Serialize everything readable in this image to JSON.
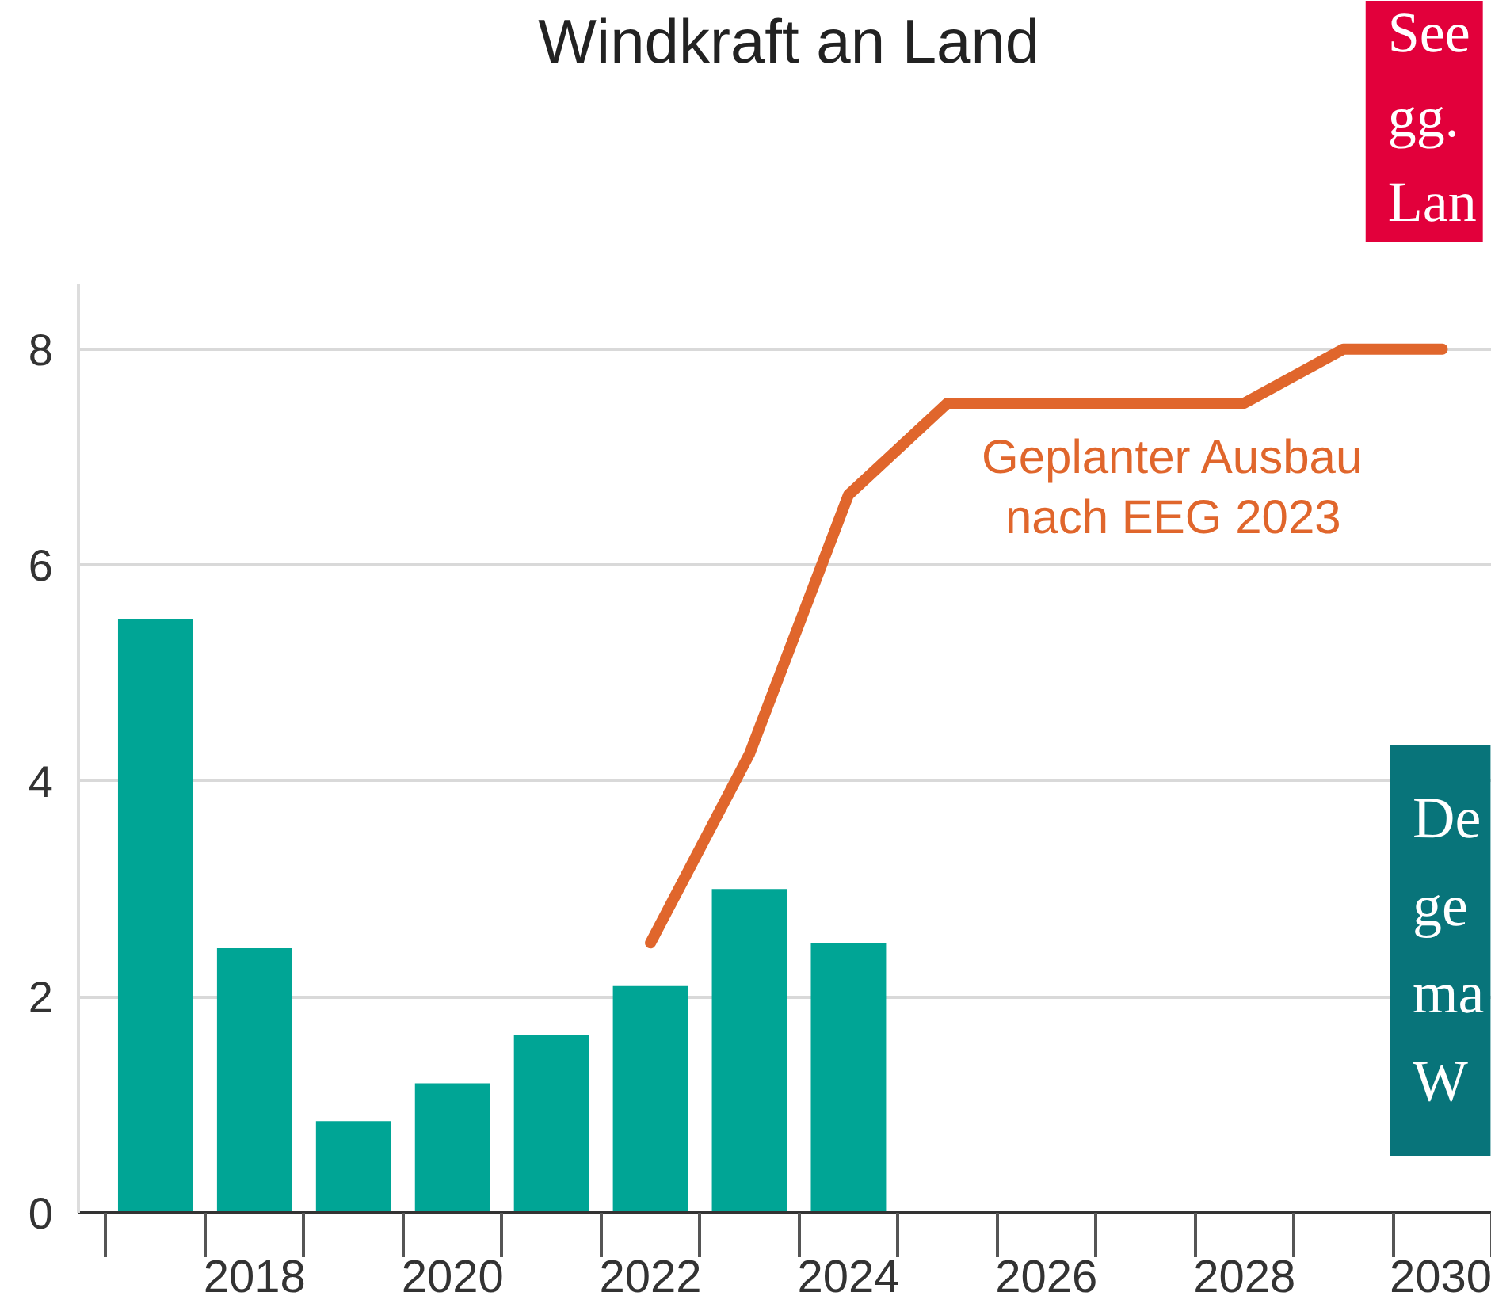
{
  "chart_data": {
    "type": "bar",
    "title": "Windkraft an Land",
    "categories": [
      null,
      "2018",
      null,
      "2020",
      null,
      "2022",
      null,
      "2024",
      null,
      "2026",
      null,
      "2028",
      null,
      "2030"
    ],
    "series": [
      {
        "color": "#00a595",
        "values": [
          5.5,
          2.45,
          0.85,
          1.2,
          1.65,
          2.1,
          3.0,
          2.5,
          null,
          null,
          null,
          null,
          null,
          null
        ]
      },
      {
        "type": "line",
        "name": "Geplanter Ausbau nach EEG 2023",
        "color": "#e0662c",
        "values": [
          null,
          null,
          null,
          null,
          null,
          2.5,
          4.25,
          6.65,
          7.5,
          7.5,
          7.5,
          7.5,
          8.0,
          8.0
        ]
      }
    ],
    "ylim": [
      0,
      8.6
    ],
    "yticks": [
      0,
      2,
      4,
      6,
      8
    ],
    "grid": "y",
    "annotations": [
      "See\ngg.\nLan",
      "De\nge\nma\nW"
    ]
  }
}
